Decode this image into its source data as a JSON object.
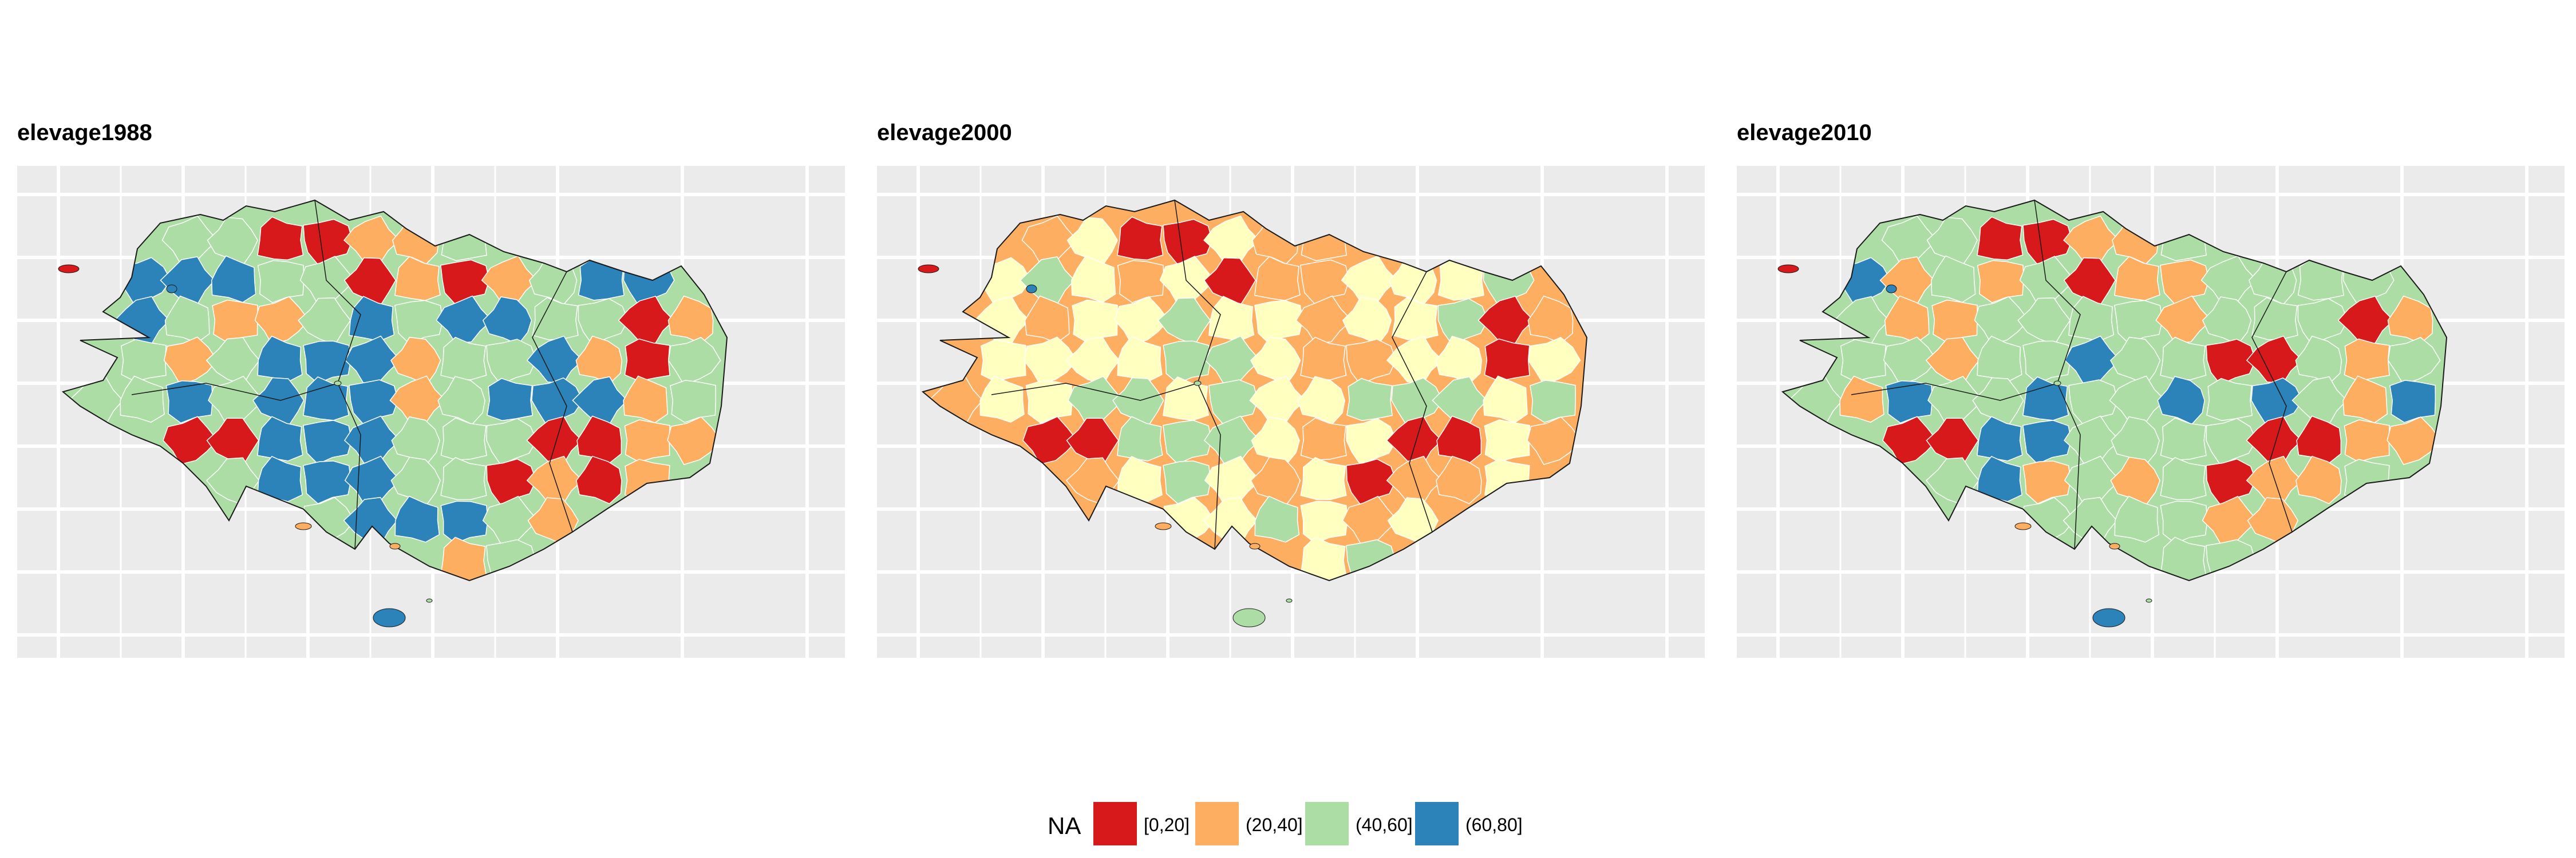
{
  "panels": [
    {
      "title": "elevage1988",
      "fill_by_zone": [
        "c",
        "c",
        "a",
        "a",
        "b",
        "b",
        "c",
        "d",
        "d",
        "d",
        "c",
        "c",
        "a",
        "b",
        "a",
        "b",
        "c",
        "d",
        "d",
        "d",
        "c",
        "b",
        "b",
        "c",
        "d",
        "c",
        "d",
        "d",
        "c",
        "c",
        "a",
        "b",
        "c",
        "b",
        "c",
        "d",
        "d",
        "d",
        "b",
        "c",
        "c",
        "d",
        "b",
        "a",
        "c",
        "c",
        "c",
        "d",
        "c",
        "d",
        "d",
        "d",
        "b",
        "c",
        "d",
        "d",
        "d",
        "b",
        "c",
        "a",
        "a",
        "d",
        "d",
        "d",
        "c"
      ]
    },
    {
      "title": "elevage2000",
      "fill_by_zone": [
        "b",
        "e",
        "a",
        "a",
        "e",
        "b",
        "b",
        "e",
        "c",
        "e",
        "b",
        "e",
        "a",
        "b",
        "b",
        "e",
        "e",
        "e",
        "c",
        "e",
        "b",
        "e",
        "e",
        "c",
        "e",
        "e",
        "b",
        "e",
        "e",
        "c",
        "a",
        "b",
        "e",
        "e",
        "e",
        "e",
        "c",
        "c",
        "e",
        "b",
        "b",
        "e",
        "e",
        "a",
        "e",
        "b",
        "e",
        "e",
        "c",
        "c",
        "e",
        "c",
        "e",
        "e",
        "c",
        "c",
        "c",
        "e",
        "c",
        "a",
        "a",
        "c",
        "c",
        "c",
        "e"
      ]
    },
    {
      "title": "elevage2010",
      "fill_by_zone": [
        "c",
        "c",
        "a",
        "a",
        "b",
        "b",
        "c",
        "d",
        "b",
        "c",
        "b",
        "c",
        "a",
        "b",
        "b",
        "c",
        "c",
        "c",
        "c",
        "c",
        "b",
        "b",
        "c",
        "c",
        "c",
        "c",
        "b",
        "c",
        "c",
        "c",
        "a",
        "b",
        "c",
        "c",
        "b",
        "c",
        "c",
        "d",
        "c",
        "c",
        "a",
        "a",
        "c",
        "b",
        "c",
        "c",
        "b",
        "d",
        "c",
        "c",
        "d",
        "c",
        "c",
        "d",
        "c",
        "d",
        "c",
        "b",
        "d",
        "a",
        "a",
        "d",
        "d",
        "c",
        "c"
      ]
    }
  ],
  "legend": {
    "title": "NA",
    "items": [
      {
        "label": "[0,20]",
        "color": "#d7191c"
      },
      {
        "label": "(20,40]",
        "color": "#fdae61"
      },
      {
        "label": "(40,60]",
        "color": "#abdda4"
      },
      {
        "label": "(60,80]",
        "color": "#2b83ba"
      }
    ]
  },
  "colors": {
    "a": "#d7191c",
    "b": "#fdae61",
    "c": "#abdda4",
    "d": "#2b83ba",
    "e": "#ffffbf",
    "panel_bg": "#ebebeb",
    "grid": "#ffffff",
    "border": "#1a1a1a"
  }
}
